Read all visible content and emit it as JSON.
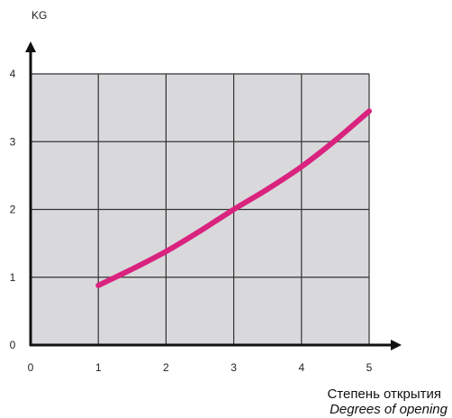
{
  "chart_data": {
    "type": "line",
    "ylabel": "KG",
    "xlabel": "Степень открытия",
    "xlabel_secondary": "Degrees of opening",
    "xlim": [
      0,
      5
    ],
    "ylim": [
      0,
      4
    ],
    "x_ticks": [
      "0",
      "1",
      "2",
      "3",
      "4",
      "5"
    ],
    "y_ticks": [
      "0",
      "1",
      "2",
      "3",
      "4"
    ],
    "grid": true,
    "plot_background": "#d9d9dc",
    "grid_color": "#333333",
    "line_color": "#d9237f",
    "series": [
      {
        "x": [
          1,
          1.5,
          2,
          2.5,
          3,
          3.5,
          4,
          4.5,
          5
        ],
        "y": [
          0.88,
          1.12,
          1.38,
          1.68,
          2.0,
          2.3,
          2.63,
          3.02,
          3.45
        ]
      }
    ]
  }
}
